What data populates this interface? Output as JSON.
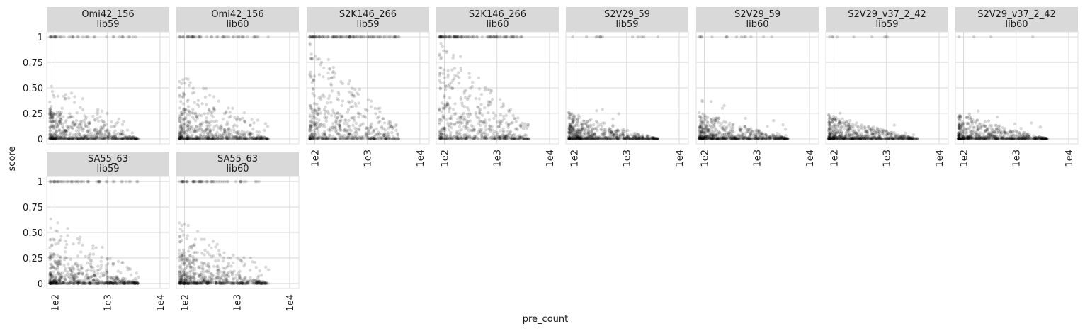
{
  "chart_data": {
    "type": "scatter",
    "title": "",
    "xlabel": "pre_count",
    "ylabel": "score",
    "x_scale": "log10",
    "xlim": [
      70,
      15000
    ],
    "ylim": [
      -0.05,
      1.05
    ],
    "x_ticks": [
      100,
      1000,
      10000
    ],
    "x_tick_labels": [
      "1e2",
      "1e3",
      "1e4"
    ],
    "y_ticks": [
      0,
      0.25,
      0.5,
      0.75,
      1
    ],
    "y_tick_labels": [
      "0",
      "0.25",
      "0.50",
      "0.75",
      "1"
    ],
    "grid": true,
    "point_color": "#000000",
    "point_opacity": 0.15,
    "strip_fill": "#d9d9d9",
    "panels": [
      {
        "antibody": "Omi42_156",
        "library": "lib59",
        "x_range": [
          80,
          4000
        ],
        "high_fraction": 0.2,
        "spread": 0.5
      },
      {
        "antibody": "Omi42_156",
        "library": "lib60",
        "x_range": [
          80,
          4000
        ],
        "high_fraction": 0.25,
        "spread": 0.55
      },
      {
        "antibody": "S2K146_266",
        "library": "lib59",
        "x_range": [
          80,
          4000
        ],
        "high_fraction": 0.45,
        "spread": 0.85
      },
      {
        "antibody": "S2K146_266",
        "library": "lib60",
        "x_range": [
          80,
          4000
        ],
        "high_fraction": 0.5,
        "spread": 0.9
      },
      {
        "antibody": "S2V29_59",
        "library": "lib59",
        "x_range": [
          80,
          4000
        ],
        "high_fraction": 0.04,
        "spread": 0.3
      },
      {
        "antibody": "S2V29_59",
        "library": "lib60",
        "x_range": [
          80,
          4000
        ],
        "high_fraction": 0.05,
        "spread": 0.3
      },
      {
        "antibody": "S2V29_v37_2_42",
        "library": "lib59",
        "x_range": [
          80,
          4000
        ],
        "high_fraction": 0.02,
        "spread": 0.18
      },
      {
        "antibody": "S2V29_v37_2_42",
        "library": "lib60",
        "x_range": [
          80,
          4000
        ],
        "high_fraction": 0.03,
        "spread": 0.2
      },
      {
        "antibody": "SA55_63",
        "library": "lib59",
        "x_range": [
          80,
          4000
        ],
        "high_fraction": 0.25,
        "spread": 0.55
      },
      {
        "antibody": "SA55_63",
        "library": "lib60",
        "x_range": [
          80,
          4000
        ],
        "high_fraction": 0.28,
        "spread": 0.55
      }
    ]
  }
}
